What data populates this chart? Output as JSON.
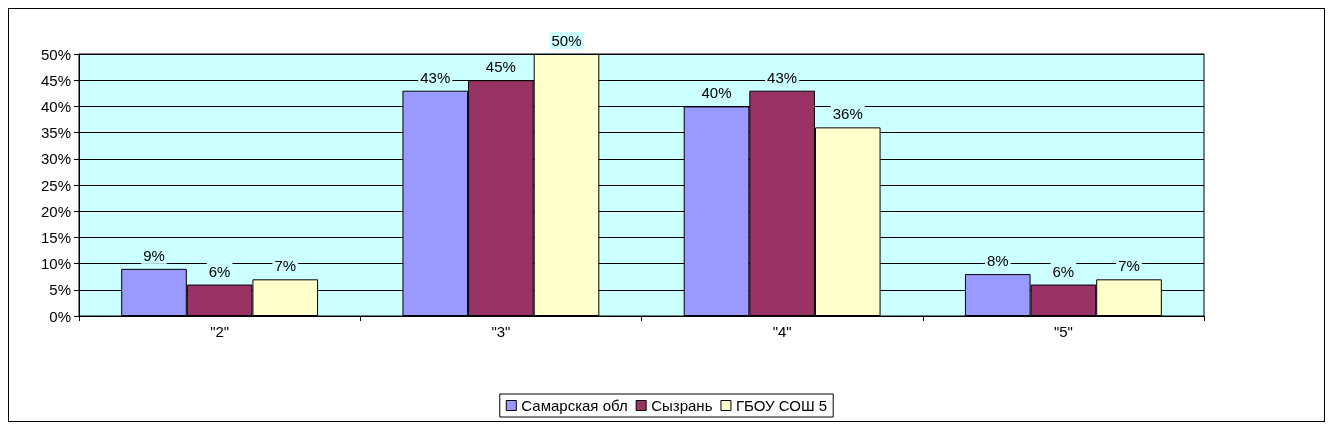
{
  "chart_data": {
    "type": "bar",
    "categories": [
      "\"2\"",
      "\"3\"",
      "\"4\"",
      "\"5\""
    ],
    "series": [
      {
        "name": "Самарская обл",
        "color": "#9999ff",
        "values": [
          9,
          43,
          40,
          8
        ],
        "value_labels": [
          "9%",
          "43%",
          "40%",
          "8%"
        ]
      },
      {
        "name": "Сызрань",
        "color": "#993366",
        "values": [
          6,
          45,
          43,
          6
        ],
        "value_labels": [
          "6%",
          "45%",
          "43%",
          "6%"
        ]
      },
      {
        "name": "ГБОУ СОШ 5",
        "color": "#ffffcc",
        "values": [
          7,
          50,
          36,
          7
        ],
        "value_labels": [
          "7%",
          "50%",
          "36%",
          "7%"
        ]
      }
    ],
    "ylim": [
      0,
      50
    ],
    "yticks": [
      {
        "value": 0,
        "label": "0%"
      },
      {
        "value": 5,
        "label": "5%"
      },
      {
        "value": 10,
        "label": "10%"
      },
      {
        "value": 15,
        "label": "15%"
      },
      {
        "value": 20,
        "label": "20%"
      },
      {
        "value": 25,
        "label": "25%"
      },
      {
        "value": 30,
        "label": "30%"
      },
      {
        "value": 35,
        "label": "35%"
      },
      {
        "value": 40,
        "label": "40%"
      },
      {
        "value": 45,
        "label": "45%"
      },
      {
        "value": 50,
        "label": "50%"
      }
    ],
    "grid": "y",
    "legend": "bottom"
  }
}
